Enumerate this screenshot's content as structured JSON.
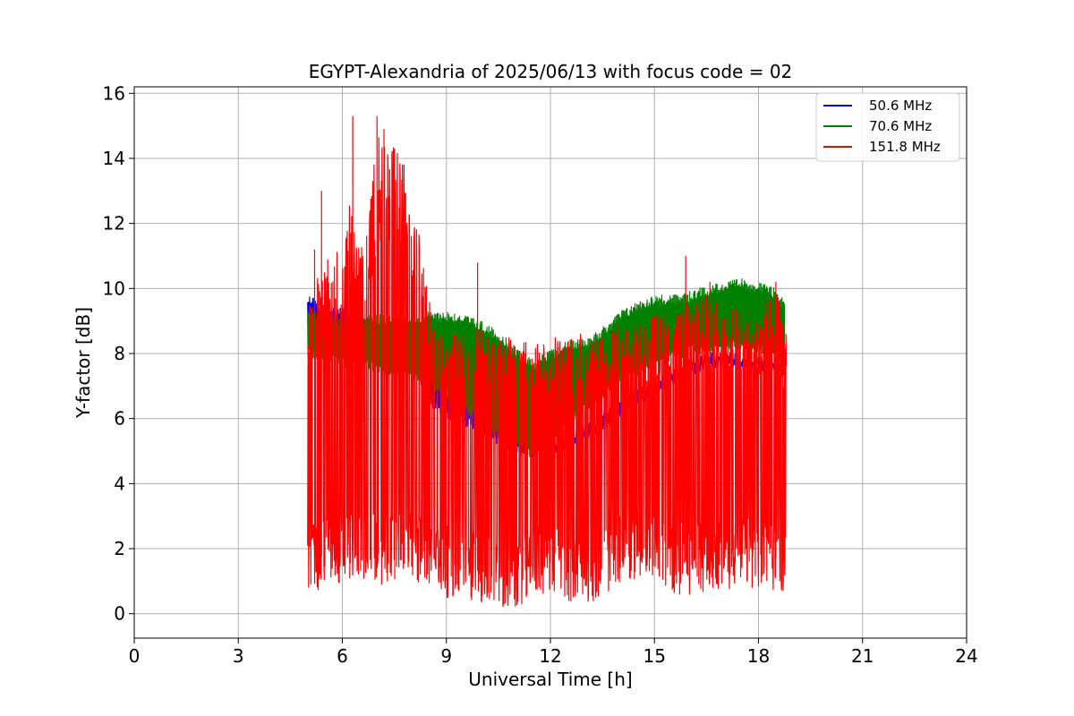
{
  "chart_data": {
    "type": "line",
    "title": "EGYPT-Alexandria of 2025/06/13 with focus code = 02",
    "xlabel": "Universal Time [h]",
    "ylabel": "Y-factor [dB]",
    "xlim": [
      0,
      24
    ],
    "ylim": [
      -0.75,
      16.2
    ],
    "xticks": [
      0,
      3,
      6,
      9,
      12,
      15,
      18,
      21,
      24
    ],
    "yticks": [
      0,
      2,
      4,
      6,
      8,
      10,
      12,
      14,
      16
    ],
    "grid": true,
    "legend_position": "top-right",
    "series": [
      {
        "name": "  50.6 MHz",
        "color": "#0000ff",
        "x": [
          5.0,
          5.1,
          5.5,
          6.0,
          6.5,
          7.0,
          7.5,
          8.0,
          8.5,
          9.0,
          9.5,
          10.0,
          10.5,
          11.0,
          11.5,
          12.0,
          12.5,
          13.0,
          13.5,
          14.0,
          14.5,
          15.0,
          15.5,
          16.0,
          16.5,
          17.0,
          17.5,
          18.0,
          18.5,
          18.75
        ],
        "upper": [
          9.8,
          9.8,
          9.5,
          9.4,
          9.2,
          9.0,
          8.9,
          8.8,
          7.5,
          7.0,
          6.9,
          6.7,
          6.4,
          6.0,
          5.6,
          5.3,
          5.5,
          5.8,
          6.2,
          6.6,
          6.9,
          7.2,
          7.5,
          7.8,
          8.0,
          8.1,
          8.0,
          7.9,
          7.8,
          7.8
        ],
        "lower": [
          8.8,
          8.8,
          8.7,
          8.5,
          8.3,
          8.0,
          7.8,
          7.6,
          6.4,
          6.0,
          5.8,
          5.5,
          5.2,
          4.9,
          4.8,
          4.9,
          5.0,
          5.3,
          5.6,
          6.0,
          6.4,
          6.7,
          7.0,
          7.3,
          7.5,
          7.6,
          7.5,
          7.4,
          7.3,
          7.3
        ]
      },
      {
        "name": "  70.6 MHz",
        "color": "#008000",
        "x": [
          5.0,
          5.5,
          6.0,
          6.5,
          7.0,
          7.5,
          8.0,
          8.5,
          9.0,
          9.5,
          10.0,
          10.5,
          11.0,
          11.5,
          12.0,
          12.5,
          13.0,
          13.5,
          14.0,
          14.5,
          15.0,
          15.5,
          16.0,
          16.5,
          17.0,
          17.5,
          18.0,
          18.5,
          18.75
        ],
        "upper": [
          9.4,
          9.3,
          9.2,
          9.2,
          9.2,
          9.2,
          9.2,
          9.3,
          9.3,
          9.2,
          9.0,
          8.7,
          8.2,
          7.8,
          8.1,
          8.4,
          8.5,
          8.8,
          9.3,
          9.6,
          9.8,
          9.8,
          9.9,
          10.1,
          10.2,
          10.3,
          10.2,
          10.0,
          9.6
        ],
        "lower": [
          7.8,
          7.8,
          7.6,
          7.5,
          7.4,
          7.3,
          7.2,
          6.9,
          6.6,
          6.2,
          5.8,
          5.4,
          5.0,
          4.8,
          5.2,
          5.8,
          6.2,
          6.5,
          7.0,
          7.3,
          7.6,
          7.8,
          7.9,
          8.0,
          8.0,
          8.1,
          8.0,
          7.8,
          7.2
        ]
      },
      {
        "name": "151.8 MHz",
        "color": "#ff0000",
        "x": [
          5.0,
          5.3,
          5.6,
          6.0,
          6.3,
          6.6,
          7.0,
          7.3,
          7.6,
          8.0,
          8.3,
          8.6,
          9.0,
          9.5,
          10.0,
          10.5,
          11.0,
          11.5,
          12.0,
          12.5,
          13.0,
          13.5,
          14.0,
          14.5,
          15.0,
          15.5,
          16.0,
          16.5,
          17.0,
          17.5,
          18.0,
          18.5,
          18.8
        ],
        "upper": [
          9.5,
          10.5,
          11.0,
          11.2,
          13.5,
          11.0,
          14.8,
          15.0,
          14.2,
          13.5,
          11.0,
          9.0,
          8.6,
          8.7,
          8.8,
          8.5,
          8.5,
          8.3,
          8.5,
          8.5,
          8.7,
          8.6,
          8.9,
          9.0,
          9.2,
          9.4,
          9.6,
          9.9,
          9.6,
          9.4,
          9.5,
          10.0,
          8.6
        ],
        "lower": [
          0.6,
          0.7,
          0.8,
          0.9,
          1.1,
          1.0,
          0.9,
          0.9,
          1.0,
          0.9,
          0.8,
          0.6,
          0.5,
          0.4,
          0.3,
          0.1,
          0.2,
          0.5,
          0.6,
          0.4,
          0.3,
          0.5,
          0.9,
          1.1,
          0.9,
          0.6,
          0.6,
          0.7,
          0.7,
          0.8,
          0.8,
          0.7,
          0.5
        ],
        "spikes": [
          {
            "x": 5.2,
            "y": 11.2
          },
          {
            "x": 5.4,
            "y": 13.0
          },
          {
            "x": 6.3,
            "y": 15.3
          },
          {
            "x": 7.0,
            "y": 15.3
          },
          {
            "x": 7.2,
            "y": 14.9
          },
          {
            "x": 9.9,
            "y": 10.8
          },
          {
            "x": 14.5,
            "y": 8.3
          },
          {
            "x": 15.9,
            "y": 11.0
          },
          {
            "x": 16.6,
            "y": 10.2
          },
          {
            "x": 18.5,
            "y": 10.2
          }
        ]
      }
    ]
  }
}
